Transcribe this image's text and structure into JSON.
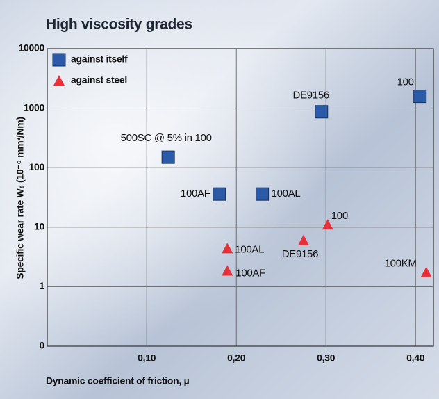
{
  "chart_data": {
    "type": "scatter",
    "title": "High viscosity grades",
    "x_label": "Dynamic coefficient of friction, µ",
    "y_label": "Specific wear rate Wₛ (10⁻⁶ mm³/Nm)",
    "xlim": [
      -0.011,
      0.42
    ],
    "ylim": [
      0.1,
      10000
    ],
    "log_y": true,
    "grid": true,
    "legend": "upper left",
    "xticks": [
      {
        "value": 0.1,
        "label": "0,10"
      },
      {
        "value": 0.2,
        "label": "0,20"
      },
      {
        "value": 0.3,
        "label": "0,30"
      },
      {
        "value": 0.4,
        "label": "0,40"
      }
    ],
    "yticks": [
      {
        "value": 0.1,
        "label": "0"
      },
      1,
      10,
      100,
      1000,
      10000
    ],
    "series": [
      {
        "name": "against itself",
        "marker": "square",
        "color": "#2a5aa8",
        "x": [
          0.124,
          0.181,
          0.229,
          0.295,
          0.405
        ],
        "values": [
          150,
          36,
          36,
          870,
          1580
        ],
        "labels": [
          "500SC @ 5% in 100",
          "100AF",
          "100AL",
          "DE9156",
          "100"
        ]
      },
      {
        "name": "against steel",
        "marker": "triangle",
        "color": "#e8303a",
        "x": [
          0.19,
          0.19,
          0.275,
          0.302,
          0.412
        ],
        "values": [
          4.4,
          1.85,
          6,
          11,
          1.75
        ],
        "labels": [
          "100AL",
          "100AF",
          "DE9156",
          "100",
          "100KM"
        ]
      }
    ]
  }
}
